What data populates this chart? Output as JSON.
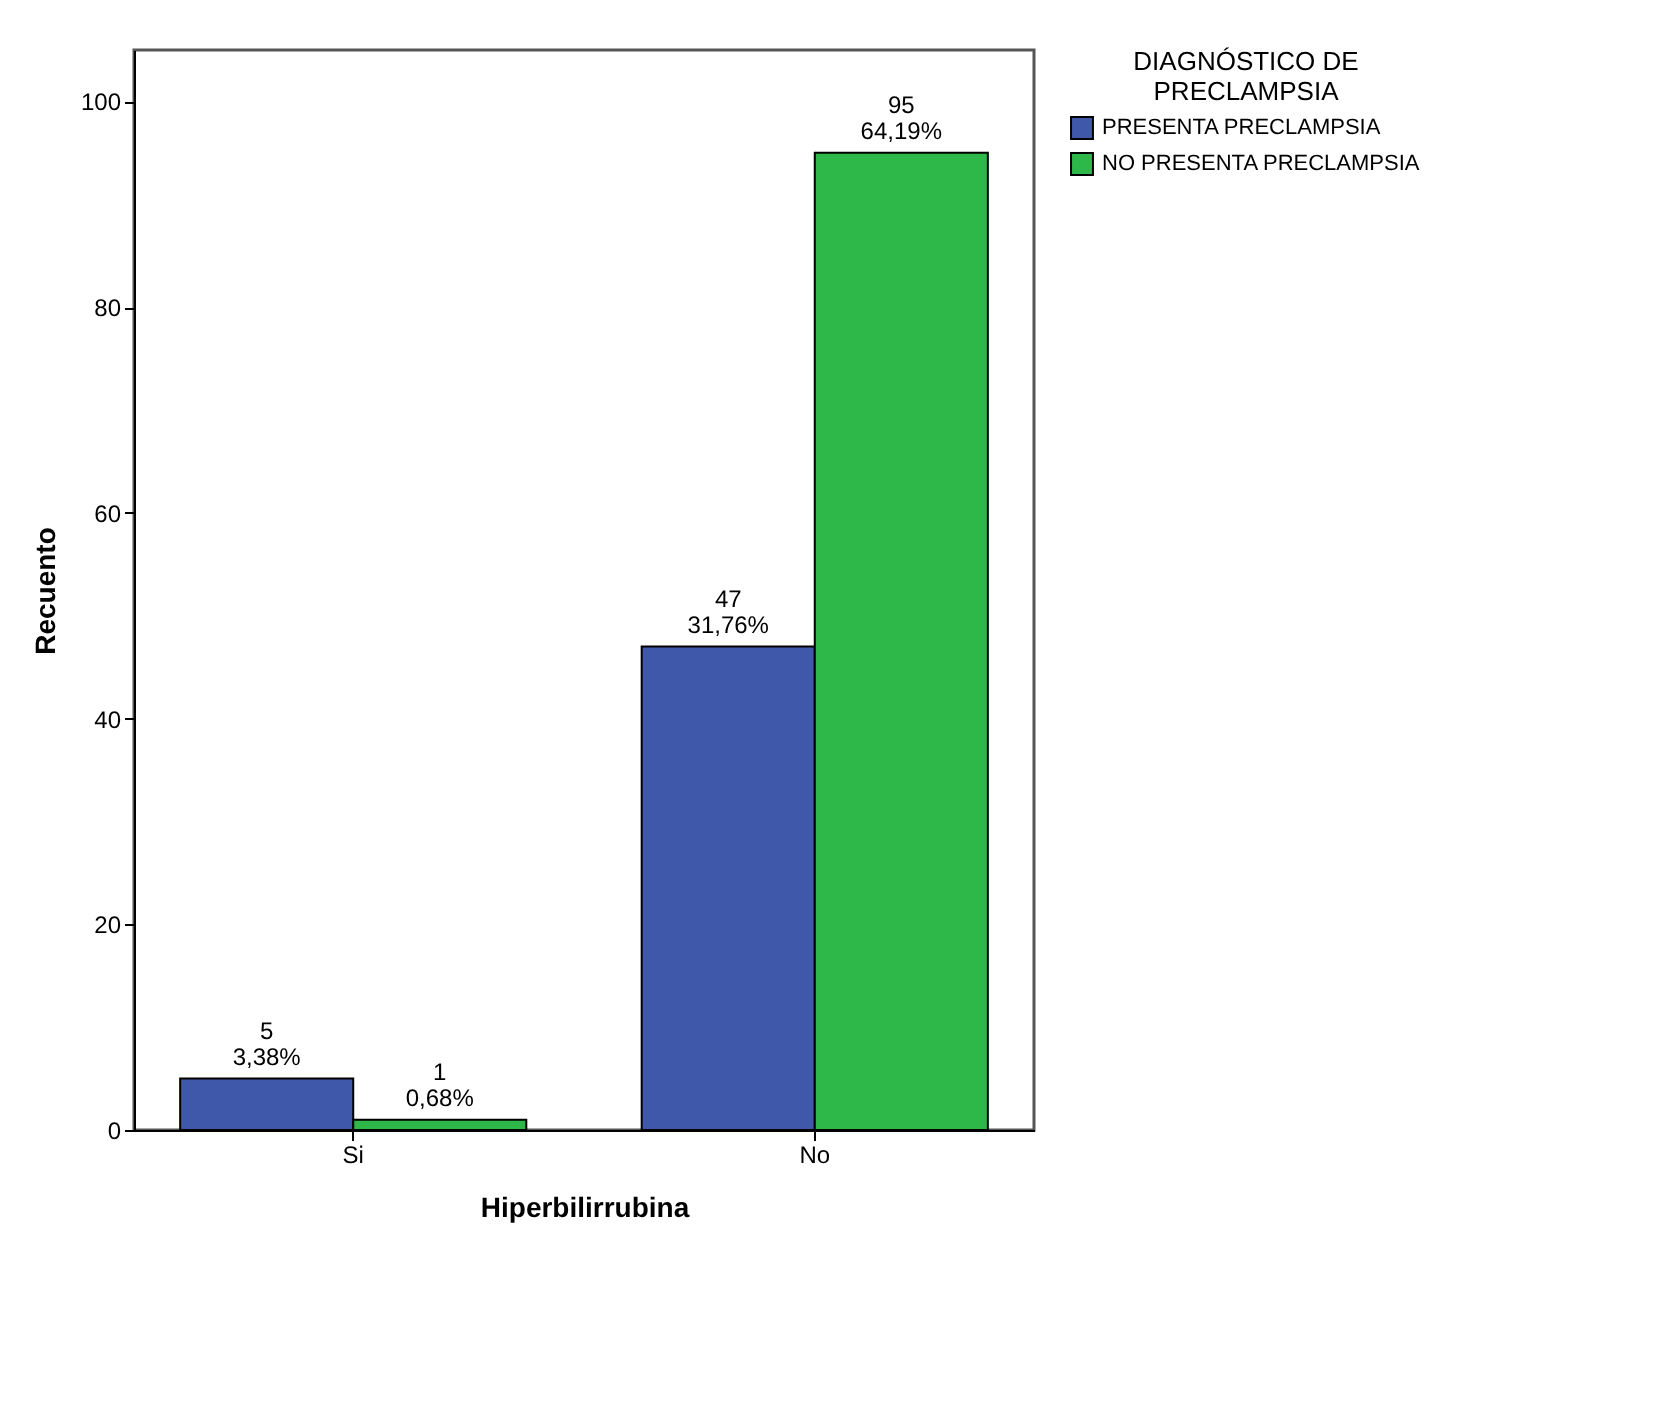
{
  "chart_data": {
    "type": "bar",
    "xlabel": "Hiperbilirrubina",
    "ylabel": "Recuento",
    "legend_title": "DIAGNÓSTICO DE PRECLAMPSIA",
    "categories": [
      "Si",
      "No"
    ],
    "series": [
      {
        "name": "PRESENTA PRECLAMPSIA",
        "color": "#3f58aa",
        "values": [
          5,
          47
        ],
        "value_labels": [
          "5\n3,38%",
          "47\n31,76%"
        ]
      },
      {
        "name": "NO PRESENTA PRECLAMPSIA",
        "color": "#2fb84a",
        "values": [
          1,
          95
        ],
        "value_labels": [
          "1\n0,68%",
          "95\n64,19%"
        ]
      }
    ],
    "ylim": [
      0,
      105
    ],
    "yticks": [
      0,
      20,
      40,
      60,
      80,
      100
    ],
    "grid": false,
    "legend": "top right"
  }
}
